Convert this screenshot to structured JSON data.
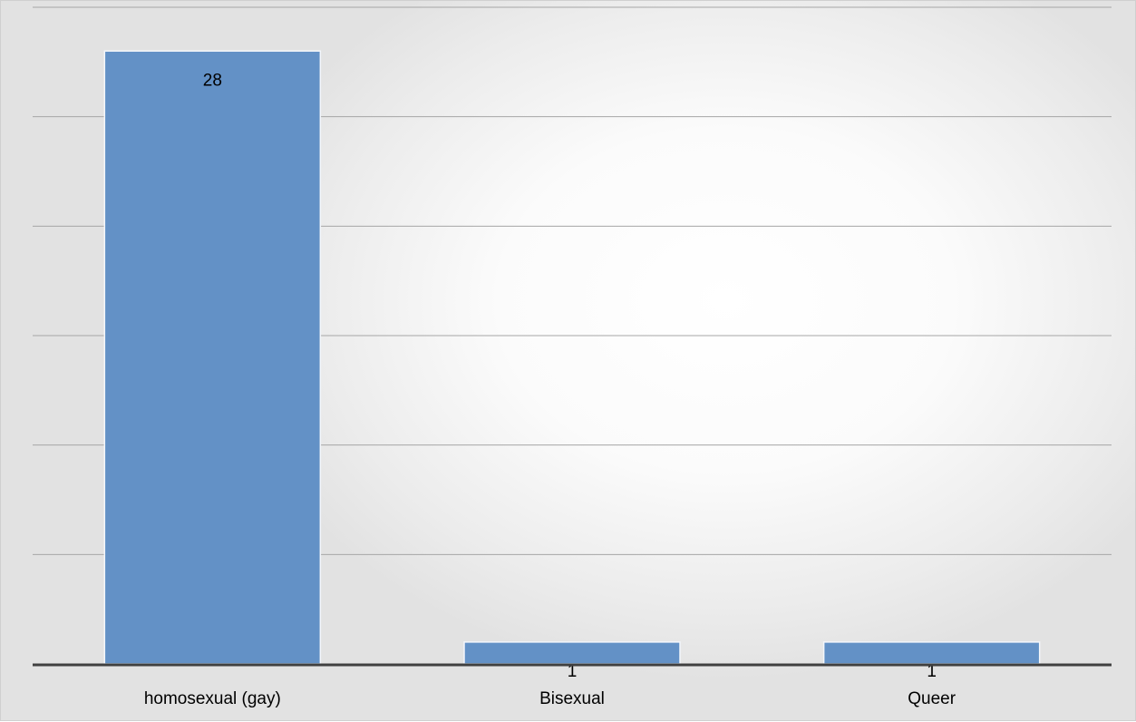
{
  "chart_data": {
    "type": "bar",
    "title": "",
    "xlabel": "",
    "ylabel": "",
    "categories": [
      "homosexual (gay)",
      "Bisexual",
      "Queer"
    ],
    "values": [
      28,
      1,
      1
    ],
    "data_labels": [
      "28",
      "1",
      "1"
    ],
    "ylim": [
      0,
      30
    ],
    "grid": true,
    "legend": "none",
    "bar_color": "#6391c6"
  }
}
